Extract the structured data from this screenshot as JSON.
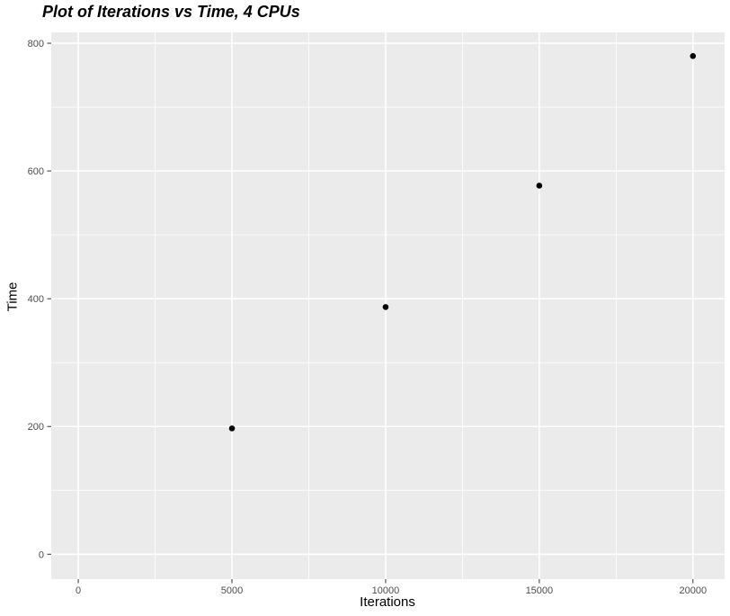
{
  "header": {
    "title": "Plot of Iterations vs Time, 4 CPUs"
  },
  "chart_data": {
    "type": "scatter",
    "title": "Plot of Iterations vs Time, 4 CPUs",
    "xlabel": "Iterations",
    "ylabel": "Time",
    "points": [
      {
        "x": 5000,
        "y": 197
      },
      {
        "x": 10000,
        "y": 387
      },
      {
        "x": 15000,
        "y": 577
      },
      {
        "x": 20000,
        "y": 780
      }
    ],
    "x_ticks": [
      0,
      5000,
      10000,
      15000,
      20000
    ],
    "y_ticks": [
      0,
      200,
      400,
      600,
      800
    ],
    "x_minor_gridlines": [
      2500,
      7500,
      12500,
      17500
    ],
    "y_minor_gridlines": [
      100,
      300,
      500,
      700
    ],
    "xlim": [
      -880,
      21030
    ],
    "ylim": [
      -39,
      817
    ],
    "grid": "major-and-minor",
    "legend_position": "none",
    "style": {
      "panel_background": "#EBEBEB",
      "grid_color": "#FFFFFF",
      "tick_mark_color": "#333333",
      "tick_label_color": "#4D4D4D",
      "point_color": "#000000",
      "title_color": "#000000",
      "axis_title_color": "#000000",
      "figure_background": "#FFFFFF"
    }
  }
}
